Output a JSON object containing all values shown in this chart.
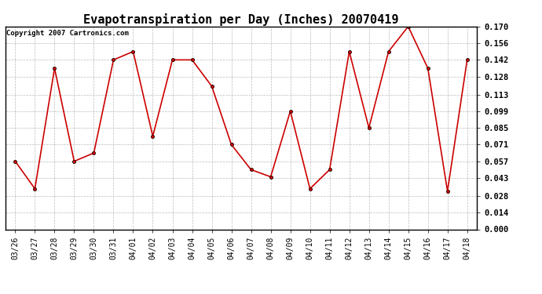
{
  "title": "Evapotranspiration per Day (Inches) 20070419",
  "copyright": "Copyright 2007 Cartronics.com",
  "dates": [
    "03/26",
    "03/27",
    "03/28",
    "03/29",
    "03/30",
    "03/31",
    "04/01",
    "04/02",
    "04/03",
    "04/04",
    "04/05",
    "04/06",
    "04/07",
    "04/08",
    "04/09",
    "04/10",
    "04/11",
    "04/12",
    "04/13",
    "04/14",
    "04/15",
    "04/16",
    "04/17",
    "04/18"
  ],
  "values": [
    0.057,
    0.034,
    0.135,
    0.057,
    0.064,
    0.142,
    0.149,
    0.078,
    0.142,
    0.142,
    0.12,
    0.071,
    0.05,
    0.044,
    0.099,
    0.034,
    0.05,
    0.149,
    0.085,
    0.149,
    0.17,
    0.135,
    0.032,
    0.142
  ],
  "ylim": [
    0.0,
    0.17
  ],
  "yticks": [
    0.0,
    0.014,
    0.028,
    0.043,
    0.057,
    0.071,
    0.085,
    0.099,
    0.113,
    0.128,
    0.142,
    0.156,
    0.17
  ],
  "line_color": "#cc0000",
  "marker": "o",
  "marker_size": 3,
  "background_color": "#ffffff",
  "grid_color": "#bbbbbb",
  "title_fontsize": 11,
  "tick_fontsize": 7,
  "copyright_fontsize": 6.5
}
